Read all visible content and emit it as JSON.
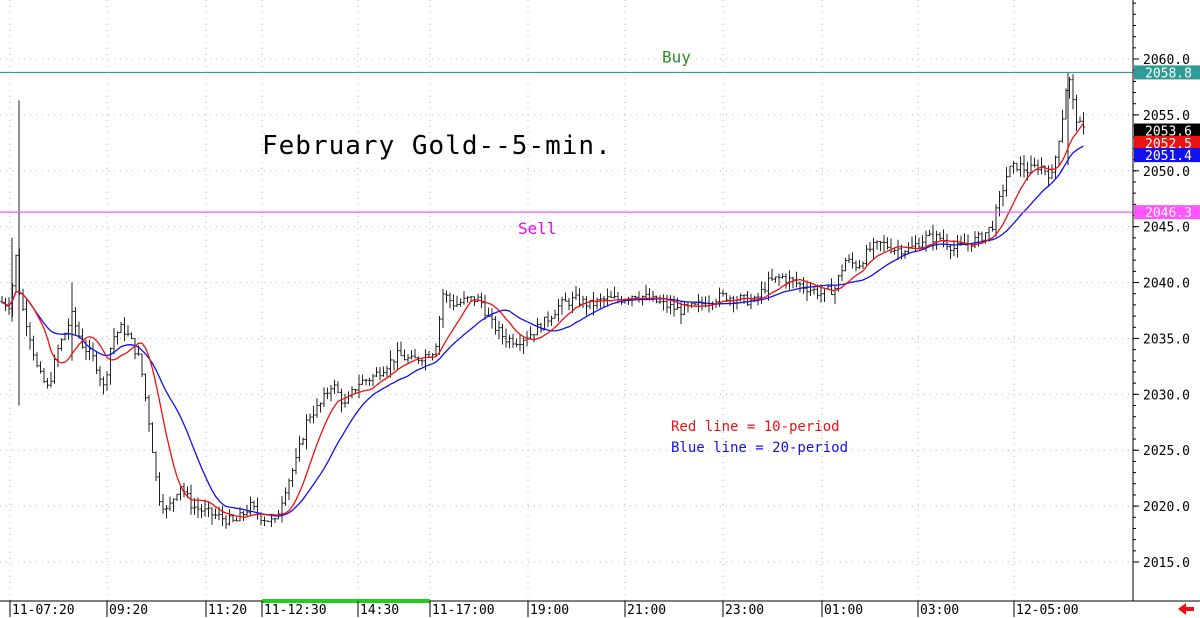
{
  "chart_data": {
    "type": "ohlc",
    "title": "February Gold--5-min.",
    "y_range": [
      2012.5,
      2066.0
    ],
    "y_ticks": [
      2015.0,
      2020.0,
      2025.0,
      2030.0,
      2035.0,
      2040.0,
      2045.0,
      2050.0,
      2055.0,
      2060.0
    ],
    "x_labels": [
      "11-07:20",
      "09:20",
      "11:20",
      "11-12:30",
      "14:30",
      "11-17:00",
      "19:00",
      "21:00",
      "23:00",
      "01:00",
      "03:00",
      "12-05:00"
    ],
    "grid": true,
    "levels": [
      {
        "name": "Buy",
        "value": 2058.8,
        "label": "2058.8",
        "color": "#2e9b95",
        "text_color": "#2e8b2e"
      },
      {
        "name": "Sell",
        "value": 2046.3,
        "label": "2046.3",
        "color": "#ff55ff",
        "text_color": "#ee00ee"
      }
    ],
    "last_price": {
      "value": 2053.6,
      "label": "2053.6",
      "color": "#000000"
    },
    "ma10": {
      "name": "Red line = 10-period",
      "value": 2052.5,
      "label": "2052.5",
      "color": "#ee1111"
    },
    "ma20": {
      "name": "Blue line = 20-period",
      "value": 2051.4,
      "label": "2051.4",
      "color": "#1111ee"
    },
    "price_path": [
      [
        0,
        2038.3
      ],
      [
        10,
        2038.0
      ],
      [
        17,
        2043.0
      ],
      [
        20,
        2038.5
      ],
      [
        28,
        2036.0
      ],
      [
        38,
        2032.0
      ],
      [
        48,
        2030.5
      ],
      [
        58,
        2034.0
      ],
      [
        72,
        2037.0
      ],
      [
        82,
        2034.5
      ],
      [
        95,
        2033.0
      ],
      [
        104,
        2030.5
      ],
      [
        112,
        2035.0
      ],
      [
        122,
        2036.0
      ],
      [
        130,
        2035.0
      ],
      [
        140,
        2033.0
      ],
      [
        150,
        2027.0
      ],
      [
        158,
        2021.0
      ],
      [
        167,
        2019.5
      ],
      [
        180,
        2022.0
      ],
      [
        192,
        2020.0
      ],
      [
        205,
        2019.5
      ],
      [
        220,
        2019.0
      ],
      [
        235,
        2018.5
      ],
      [
        250,
        2020.0
      ],
      [
        262,
        2019.0
      ],
      [
        275,
        2018.5
      ],
      [
        285,
        2021.5
      ],
      [
        296,
        2024.0
      ],
      [
        308,
        2028.0
      ],
      [
        320,
        2029.0
      ],
      [
        332,
        2031.0
      ],
      [
        345,
        2029.0
      ],
      [
        358,
        2031.0
      ],
      [
        372,
        2031.5
      ],
      [
        385,
        2032.5
      ],
      [
        398,
        2033.5
      ],
      [
        412,
        2033.0
      ],
      [
        425,
        2033.5
      ],
      [
        435,
        2034.0
      ],
      [
        443,
        2039.0
      ],
      [
        455,
        2038.0
      ],
      [
        468,
        2038.5
      ],
      [
        480,
        2038.5
      ],
      [
        490,
        2036.5
      ],
      [
        505,
        2035.0
      ],
      [
        518,
        2034.8
      ],
      [
        532,
        2035.5
      ],
      [
        545,
        2036.5
      ],
      [
        560,
        2038.0
      ],
      [
        575,
        2038.5
      ],
      [
        590,
        2038.0
      ],
      [
        605,
        2038.5
      ],
      [
        620,
        2038.5
      ],
      [
        635,
        2039.0
      ],
      [
        650,
        2038.5
      ],
      [
        665,
        2038.0
      ],
      [
        680,
        2037.5
      ],
      [
        695,
        2037.8
      ],
      [
        710,
        2038.5
      ],
      [
        725,
        2038.8
      ],
      [
        740,
        2038.5
      ],
      [
        755,
        2038.3
      ],
      [
        768,
        2040.0
      ],
      [
        782,
        2040.5
      ],
      [
        795,
        2040.0
      ],
      [
        808,
        2039.5
      ],
      [
        822,
        2039.0
      ],
      [
        835,
        2039.5
      ],
      [
        845,
        2042.0
      ],
      [
        858,
        2041.5
      ],
      [
        870,
        2043.0
      ],
      [
        882,
        2043.5
      ],
      [
        895,
        2043.0
      ],
      [
        910,
        2043.0
      ],
      [
        925,
        2044.0
      ],
      [
        940,
        2044.0
      ],
      [
        955,
        2043.0
      ],
      [
        968,
        2043.5
      ],
      [
        980,
        2044.0
      ],
      [
        992,
        2045.0
      ],
      [
        1000,
        2047.5
      ],
      [
        1008,
        2050.0
      ],
      [
        1018,
        2050.5
      ],
      [
        1028,
        2050.0
      ],
      [
        1040,
        2050.5
      ],
      [
        1052,
        2049.5
      ],
      [
        1062,
        2054.5
      ],
      [
        1068,
        2058.8
      ],
      [
        1075,
        2055.0
      ],
      [
        1082,
        2053.6
      ],
      [
        1088,
        2053.6
      ]
    ],
    "spikes": [
      {
        "x": 19,
        "high": 2056.3,
        "low": 2029.0
      },
      {
        "x": 12,
        "high": 2044.0,
        "low": 2036.5
      },
      {
        "x": 1068,
        "high": 2058.8,
        "low": 2050.5
      },
      {
        "x": 72,
        "high": 2040.0,
        "low": 2033.0
      }
    ],
    "legend": [
      "Red line = 10-period",
      "Blue line = 20-period"
    ]
  }
}
